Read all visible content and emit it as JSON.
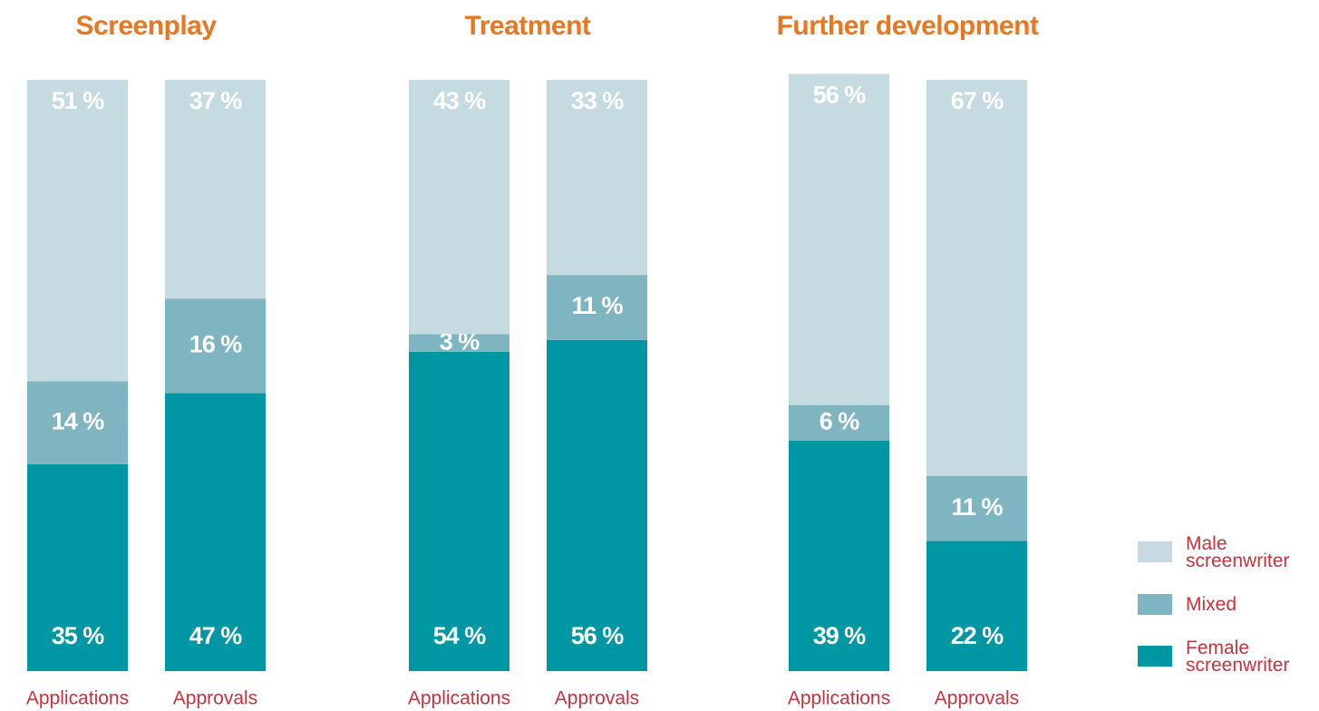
{
  "chart_data": {
    "type": "bar",
    "stacked": true,
    "group_titles": [
      "Screenplay",
      "Treatment",
      "Further development"
    ],
    "categories": [
      "Applications",
      "Approvals",
      "Applications",
      "Approvals",
      "Applications",
      "Approvals"
    ],
    "ylim": [
      0,
      100
    ],
    "series": [
      {
        "name": "Male screenwriter",
        "color": "#c5dae1",
        "values": [
          51,
          37,
          43,
          33,
          56,
          67
        ],
        "value_labels": [
          "51 %",
          "37 %",
          "43 %",
          "33 %",
          "56 %",
          "67 %"
        ]
      },
      {
        "name": "Mixed",
        "color": "#7fb5c1",
        "values": [
          14,
          16,
          3,
          11,
          6,
          11
        ],
        "value_labels": [
          "14 %",
          "16 %",
          "3 %",
          "11 %",
          "6 %",
          "11 %"
        ]
      },
      {
        "name": "Female screenwriter",
        "color": "#0097a5",
        "values": [
          35,
          47,
          54,
          56,
          39,
          22
        ],
        "value_labels": [
          "35 %",
          "47 %",
          "54 %",
          "56 %",
          "39 %",
          "22 %"
        ]
      }
    ]
  }
}
